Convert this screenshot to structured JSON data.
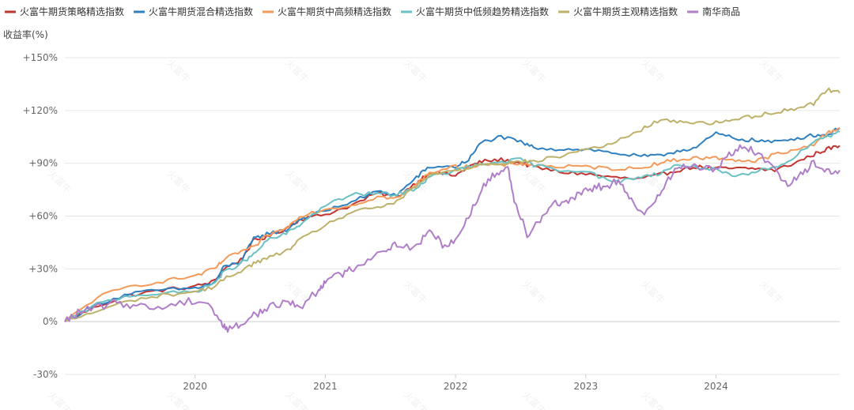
{
  "watermark_text": "火富牛",
  "chart_data": {
    "type": "line",
    "ylabel": "收益率(%)",
    "ylim": [
      -30,
      150
    ],
    "y_ticks": [
      {
        "value": -30,
        "label": "-30%"
      },
      {
        "value": 0,
        "label": "0%"
      },
      {
        "value": 30,
        "label": "+30%"
      },
      {
        "value": 60,
        "label": "+60%"
      },
      {
        "value": 90,
        "label": "+90%"
      },
      {
        "value": 120,
        "label": "+120%"
      },
      {
        "value": 150,
        "label": "+150%"
      }
    ],
    "xlim": [
      2019.0,
      2024.95
    ],
    "x_ticks": [
      {
        "value": 2020.0,
        "label": "2020"
      },
      {
        "value": 2021.0,
        "label": "2021"
      },
      {
        "value": 2022.0,
        "label": "2022"
      },
      {
        "value": 2023.0,
        "label": "2023"
      },
      {
        "value": 2024.0,
        "label": "2024"
      }
    ],
    "legend_position": "top",
    "grid": true,
    "series": [
      {
        "name": "火富牛期货策略精选指数",
        "color": "#c23531",
        "points": [
          [
            2019.0,
            0
          ],
          [
            2019.25,
            9
          ],
          [
            2019.5,
            15
          ],
          [
            2019.75,
            18
          ],
          [
            2020.0,
            20
          ],
          [
            2020.15,
            23
          ],
          [
            2020.22,
            30
          ],
          [
            2020.35,
            35
          ],
          [
            2020.45,
            46
          ],
          [
            2020.55,
            48
          ],
          [
            2020.7,
            53
          ],
          [
            2020.8,
            58
          ],
          [
            2021.0,
            61
          ],
          [
            2021.2,
            66
          ],
          [
            2021.4,
            73
          ],
          [
            2021.55,
            71
          ],
          [
            2021.7,
            79
          ],
          [
            2021.8,
            85
          ],
          [
            2022.0,
            83
          ],
          [
            2022.1,
            88
          ],
          [
            2022.2,
            91
          ],
          [
            2022.35,
            92
          ],
          [
            2022.5,
            90
          ],
          [
            2022.6,
            88
          ],
          [
            2022.8,
            85
          ],
          [
            2023.0,
            84
          ],
          [
            2023.2,
            82
          ],
          [
            2023.4,
            81
          ],
          [
            2023.55,
            83
          ],
          [
            2023.7,
            86
          ],
          [
            2023.85,
            88
          ],
          [
            2024.0,
            87
          ],
          [
            2024.15,
            87
          ],
          [
            2024.3,
            87
          ],
          [
            2024.45,
            86
          ],
          [
            2024.6,
            90
          ],
          [
            2024.75,
            95
          ],
          [
            2024.85,
            98
          ],
          [
            2024.95,
            100
          ]
        ]
      },
      {
        "name": "火富牛期货混合精选指数",
        "color": "#2f80c0",
        "points": [
          [
            2019.0,
            0
          ],
          [
            2019.25,
            10
          ],
          [
            2019.5,
            16
          ],
          [
            2019.75,
            18
          ],
          [
            2020.0,
            19
          ],
          [
            2020.15,
            22
          ],
          [
            2020.22,
            31
          ],
          [
            2020.35,
            34
          ],
          [
            2020.45,
            47
          ],
          [
            2020.55,
            50
          ],
          [
            2020.7,
            52
          ],
          [
            2020.8,
            58
          ],
          [
            2021.0,
            63
          ],
          [
            2021.2,
            68
          ],
          [
            2021.4,
            74
          ],
          [
            2021.55,
            72
          ],
          [
            2021.7,
            82
          ],
          [
            2021.8,
            88
          ],
          [
            2022.0,
            88
          ],
          [
            2022.1,
            92
          ],
          [
            2022.2,
            102
          ],
          [
            2022.35,
            105
          ],
          [
            2022.5,
            102
          ],
          [
            2022.6,
            99
          ],
          [
            2022.8,
            98
          ],
          [
            2023.0,
            98
          ],
          [
            2023.2,
            96
          ],
          [
            2023.4,
            94
          ],
          [
            2023.55,
            94
          ],
          [
            2023.7,
            97
          ],
          [
            2023.85,
            99
          ],
          [
            2024.0,
            107
          ],
          [
            2024.15,
            104
          ],
          [
            2024.3,
            103
          ],
          [
            2024.45,
            102
          ],
          [
            2024.6,
            104
          ],
          [
            2024.75,
            106
          ],
          [
            2024.85,
            106
          ],
          [
            2024.95,
            110
          ]
        ]
      },
      {
        "name": "火富牛期货中高频精选指数",
        "color": "#f49a5b",
        "points": [
          [
            2019.0,
            0
          ],
          [
            2019.25,
            14
          ],
          [
            2019.5,
            20
          ],
          [
            2019.75,
            23
          ],
          [
            2020.0,
            26
          ],
          [
            2020.15,
            30
          ],
          [
            2020.22,
            35
          ],
          [
            2020.35,
            40
          ],
          [
            2020.45,
            42
          ],
          [
            2020.55,
            49
          ],
          [
            2020.7,
            53
          ],
          [
            2020.8,
            60
          ],
          [
            2021.0,
            64
          ],
          [
            2021.2,
            66
          ],
          [
            2021.4,
            71
          ],
          [
            2021.55,
            70
          ],
          [
            2021.7,
            78
          ],
          [
            2021.8,
            85
          ],
          [
            2022.0,
            88
          ],
          [
            2022.1,
            88
          ],
          [
            2022.2,
            89
          ],
          [
            2022.35,
            89
          ],
          [
            2022.5,
            90
          ],
          [
            2022.6,
            89
          ],
          [
            2022.8,
            88
          ],
          [
            2023.0,
            88
          ],
          [
            2023.2,
            87
          ],
          [
            2023.4,
            87
          ],
          [
            2023.55,
            90
          ],
          [
            2023.7,
            92
          ],
          [
            2023.85,
            93
          ],
          [
            2024.0,
            93
          ],
          [
            2024.15,
            92
          ],
          [
            2024.3,
            91
          ],
          [
            2024.45,
            95
          ],
          [
            2024.6,
            97
          ],
          [
            2024.75,
            101
          ],
          [
            2024.85,
            107
          ],
          [
            2024.95,
            110
          ]
        ]
      },
      {
        "name": "火富牛期货中低频趋势精选指数",
        "color": "#6ac1c3",
        "points": [
          [
            2019.0,
            0
          ],
          [
            2019.25,
            10
          ],
          [
            2019.5,
            15
          ],
          [
            2019.75,
            16
          ],
          [
            2020.0,
            17
          ],
          [
            2020.15,
            22
          ],
          [
            2020.22,
            28
          ],
          [
            2020.35,
            33
          ],
          [
            2020.45,
            38
          ],
          [
            2020.55,
            46
          ],
          [
            2020.7,
            50
          ],
          [
            2020.8,
            55
          ],
          [
            2021.0,
            66
          ],
          [
            2021.2,
            72
          ],
          [
            2021.4,
            73
          ],
          [
            2021.55,
            72
          ],
          [
            2021.7,
            76
          ],
          [
            2021.8,
            82
          ],
          [
            2022.0,
            86
          ],
          [
            2022.1,
            88
          ],
          [
            2022.2,
            89
          ],
          [
            2022.35,
            91
          ],
          [
            2022.5,
            92
          ],
          [
            2022.6,
            89
          ],
          [
            2022.8,
            86
          ],
          [
            2023.0,
            86
          ],
          [
            2023.2,
            79
          ],
          [
            2023.4,
            82
          ],
          [
            2023.55,
            84
          ],
          [
            2023.7,
            89
          ],
          [
            2023.85,
            88
          ],
          [
            2024.0,
            86
          ],
          [
            2024.15,
            82
          ],
          [
            2024.3,
            85
          ],
          [
            2024.45,
            88
          ],
          [
            2024.6,
            93
          ],
          [
            2024.75,
            103
          ],
          [
            2024.85,
            105
          ],
          [
            2024.95,
            108
          ]
        ]
      },
      {
        "name": "火富牛期货主观精选指数",
        "color": "#bdb16a",
        "points": [
          [
            2019.0,
            0
          ],
          [
            2019.25,
            6
          ],
          [
            2019.5,
            12
          ],
          [
            2019.75,
            15
          ],
          [
            2020.0,
            17
          ],
          [
            2020.15,
            20
          ],
          [
            2020.22,
            24
          ],
          [
            2020.35,
            29
          ],
          [
            2020.45,
            33
          ],
          [
            2020.55,
            36
          ],
          [
            2020.7,
            40
          ],
          [
            2020.8,
            46
          ],
          [
            2021.0,
            55
          ],
          [
            2021.2,
            62
          ],
          [
            2021.4,
            65
          ],
          [
            2021.55,
            68
          ],
          [
            2021.7,
            77
          ],
          [
            2021.8,
            83
          ],
          [
            2022.0,
            86
          ],
          [
            2022.1,
            87
          ],
          [
            2022.2,
            90
          ],
          [
            2022.35,
            90
          ],
          [
            2022.5,
            91
          ],
          [
            2022.6,
            91
          ],
          [
            2022.8,
            94
          ],
          [
            2023.0,
            98
          ],
          [
            2023.2,
            101
          ],
          [
            2023.4,
            108
          ],
          [
            2023.55,
            114
          ],
          [
            2023.7,
            114
          ],
          [
            2023.85,
            113
          ],
          [
            2024.0,
            113
          ],
          [
            2024.15,
            115
          ],
          [
            2024.3,
            117
          ],
          [
            2024.45,
            119
          ],
          [
            2024.6,
            121
          ],
          [
            2024.75,
            124
          ],
          [
            2024.85,
            132
          ],
          [
            2024.95,
            130
          ]
        ]
      },
      {
        "name": "南华商品",
        "color": "#b07ec9",
        "points": [
          [
            2019.0,
            0
          ],
          [
            2019.1,
            5
          ],
          [
            2019.25,
            8
          ],
          [
            2019.4,
            11
          ],
          [
            2019.55,
            9
          ],
          [
            2019.75,
            8
          ],
          [
            2019.95,
            12
          ],
          [
            2020.1,
            11
          ],
          [
            2020.2,
            -1
          ],
          [
            2020.25,
            -4
          ],
          [
            2020.35,
            -2
          ],
          [
            2020.45,
            4
          ],
          [
            2020.55,
            7
          ],
          [
            2020.7,
            12
          ],
          [
            2020.8,
            8
          ],
          [
            2020.95,
            18
          ],
          [
            2021.0,
            24
          ],
          [
            2021.1,
            26
          ],
          [
            2021.2,
            30
          ],
          [
            2021.3,
            34
          ],
          [
            2021.45,
            41
          ],
          [
            2021.55,
            44
          ],
          [
            2021.7,
            42
          ],
          [
            2021.8,
            52
          ],
          [
            2021.9,
            44
          ],
          [
            2022.0,
            46
          ],
          [
            2022.1,
            60
          ],
          [
            2022.2,
            75
          ],
          [
            2022.3,
            84
          ],
          [
            2022.4,
            88
          ],
          [
            2022.45,
            70
          ],
          [
            2022.55,
            50
          ],
          [
            2022.65,
            58
          ],
          [
            2022.75,
            68
          ],
          [
            2022.85,
            67
          ],
          [
            2022.95,
            72
          ],
          [
            2023.05,
            76
          ],
          [
            2023.15,
            77
          ],
          [
            2023.25,
            80
          ],
          [
            2023.35,
            68
          ],
          [
            2023.45,
            60
          ],
          [
            2023.55,
            72
          ],
          [
            2023.65,
            83
          ],
          [
            2023.75,
            89
          ],
          [
            2023.85,
            88
          ],
          [
            2024.0,
            86
          ],
          [
            2024.1,
            95
          ],
          [
            2024.2,
            100
          ],
          [
            2024.3,
            96
          ],
          [
            2024.45,
            87
          ],
          [
            2024.55,
            78
          ],
          [
            2024.65,
            84
          ],
          [
            2024.75,
            90
          ],
          [
            2024.85,
            85
          ],
          [
            2024.95,
            86
          ]
        ]
      }
    ]
  }
}
